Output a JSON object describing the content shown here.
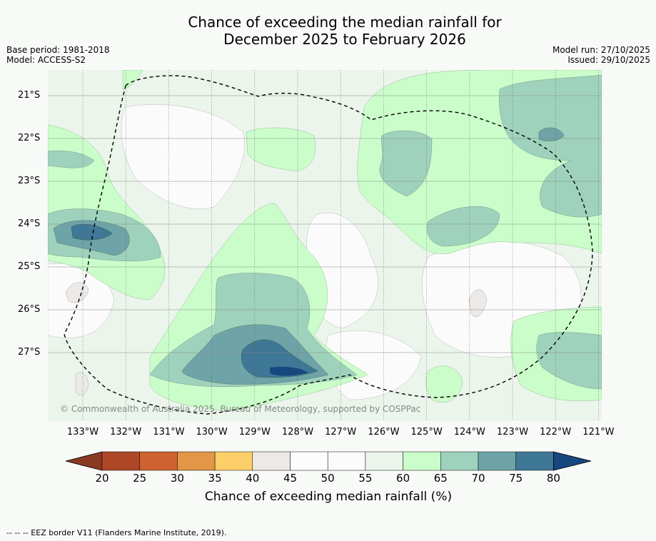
{
  "header": {
    "title_line1": "Chance of exceeding the median rainfall for",
    "title_line2": "December 2025 to February 2026",
    "base_period": "Base period: 1981-2018",
    "model": "Model: ACCESS-S2",
    "model_run": "Model run: 27/10/2025",
    "issued": "Issued: 29/10/2025"
  },
  "axes": {
    "lat_ticks": [
      "21°S",
      "22°S",
      "23°S",
      "24°S",
      "25°S",
      "26°S",
      "27°S"
    ],
    "lon_ticks": [
      "133°W",
      "132°W",
      "131°W",
      "130°W",
      "129°W",
      "128°W",
      "127°W",
      "126°W",
      "125°W",
      "124°W",
      "123°W",
      "122°W",
      "121°W"
    ]
  },
  "map": {
    "copyright": "© Commonwealth of Australia 2025, Bureau of Meteorology, supported by COSPPac"
  },
  "colorbar": {
    "title": "Chance of exceeding median rainfall (%)",
    "labels": [
      "20",
      "25",
      "30",
      "35",
      "40",
      "45",
      "50",
      "55",
      "60",
      "65",
      "70",
      "75",
      "80"
    ],
    "colors": [
      "#ae4728",
      "#cf6330",
      "#e29646",
      "#fccf69",
      "#ece9e6",
      "#fcfcfc",
      "#fbfbfb",
      "#ebf5eb",
      "#cbfdcb",
      "#9fd2bc",
      "#6ea4a8",
      "#3f7896"
    ],
    "under_color": "#8a3a22",
    "over_color": "#17477f"
  },
  "legend": {
    "text": "-- -- -- EEZ border V11 (Flanders Marine Institute, 2019)."
  }
}
